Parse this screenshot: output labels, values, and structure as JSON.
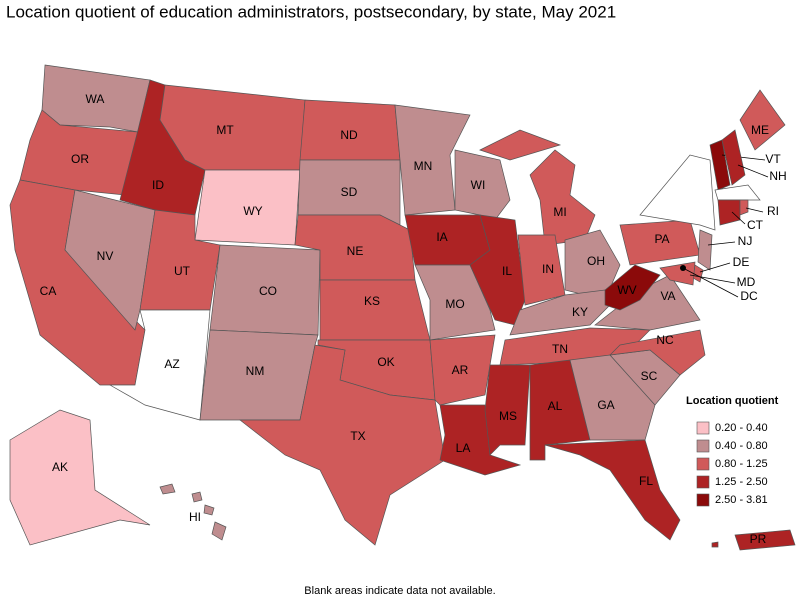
{
  "title": "Location quotient of education administrators, postsecondary, by state, May 2021",
  "legend": {
    "title": "Location quotient",
    "items": [
      {
        "label": "0.20 - 0.40",
        "color": "#fbc0c6"
      },
      {
        "label": "0.40 - 0.80",
        "color": "#bf8d8f"
      },
      {
        "label": "0.80 - 1.25",
        "color": "#d05a5a"
      },
      {
        "label": "1.25 - 2.50",
        "color": "#ad2324"
      },
      {
        "label": "2.50 - 3.81",
        "color": "#8b0a0a"
      }
    ]
  },
  "states": [
    {
      "abbr": "WA",
      "range": "0.40 - 0.80"
    },
    {
      "abbr": "OR",
      "range": "0.80 - 1.25"
    },
    {
      "abbr": "CA",
      "range": "0.80 - 1.25"
    },
    {
      "abbr": "NV",
      "range": "0.40 - 0.80"
    },
    {
      "abbr": "ID",
      "range": "1.25 - 2.50"
    },
    {
      "abbr": "MT",
      "range": "0.80 - 1.25"
    },
    {
      "abbr": "WY",
      "range": "0.20 - 0.40"
    },
    {
      "abbr": "UT",
      "range": "0.80 - 1.25"
    },
    {
      "abbr": "AZ",
      "range": null
    },
    {
      "abbr": "CO",
      "range": "0.40 - 0.80"
    },
    {
      "abbr": "NM",
      "range": "0.40 - 0.80"
    },
    {
      "abbr": "ND",
      "range": "0.80 - 1.25"
    },
    {
      "abbr": "SD",
      "range": "0.40 - 0.80"
    },
    {
      "abbr": "NE",
      "range": "0.80 - 1.25"
    },
    {
      "abbr": "KS",
      "range": "0.80 - 1.25"
    },
    {
      "abbr": "OK",
      "range": "0.80 - 1.25"
    },
    {
      "abbr": "TX",
      "range": "0.80 - 1.25"
    },
    {
      "abbr": "MN",
      "range": "0.40 - 0.80"
    },
    {
      "abbr": "IA",
      "range": "1.25 - 2.50"
    },
    {
      "abbr": "MO",
      "range": "0.40 - 0.80"
    },
    {
      "abbr": "AR",
      "range": "0.80 - 1.25"
    },
    {
      "abbr": "LA",
      "range": "1.25 - 2.50"
    },
    {
      "abbr": "WI",
      "range": "0.40 - 0.80"
    },
    {
      "abbr": "IL",
      "range": "1.25 - 2.50"
    },
    {
      "abbr": "MI",
      "range": "0.80 - 1.25"
    },
    {
      "abbr": "IN",
      "range": "0.80 - 1.25"
    },
    {
      "abbr": "OH",
      "range": "0.40 - 0.80"
    },
    {
      "abbr": "KY",
      "range": "0.40 - 0.80"
    },
    {
      "abbr": "TN",
      "range": "0.80 - 1.25"
    },
    {
      "abbr": "MS",
      "range": "1.25 - 2.50"
    },
    {
      "abbr": "AL",
      "range": "1.25 - 2.50"
    },
    {
      "abbr": "GA",
      "range": "0.40 - 0.80"
    },
    {
      "abbr": "FL",
      "range": "1.25 - 2.50"
    },
    {
      "abbr": "SC",
      "range": "0.40 - 0.80"
    },
    {
      "abbr": "NC",
      "range": "0.80 - 1.25"
    },
    {
      "abbr": "VA",
      "range": "0.40 - 0.80"
    },
    {
      "abbr": "WV",
      "range": "2.50 - 3.81"
    },
    {
      "abbr": "PA",
      "range": "0.80 - 1.25"
    },
    {
      "abbr": "NY",
      "range": null
    },
    {
      "abbr": "ME",
      "range": "0.80 - 1.25"
    },
    {
      "abbr": "VT",
      "range": "2.50 - 3.81"
    },
    {
      "abbr": "NH",
      "range": "1.25 - 2.50"
    },
    {
      "abbr": "MA",
      "range": null
    },
    {
      "abbr": "CT",
      "range": "1.25 - 2.50"
    },
    {
      "abbr": "RI",
      "range": "0.80 - 1.25"
    },
    {
      "abbr": "NJ",
      "range": "0.40 - 0.80"
    },
    {
      "abbr": "DE",
      "range": "0.80 - 1.25"
    },
    {
      "abbr": "MD",
      "range": "0.80 - 1.25"
    },
    {
      "abbr": "DC",
      "range": "2.50 - 3.81"
    },
    {
      "abbr": "AK",
      "range": "0.20 - 0.40"
    },
    {
      "abbr": "HI",
      "range": "0.40 - 0.80"
    },
    {
      "abbr": "PR",
      "range": "1.25 - 2.50"
    }
  ],
  "footnote": "Blank areas indicate data not available."
}
